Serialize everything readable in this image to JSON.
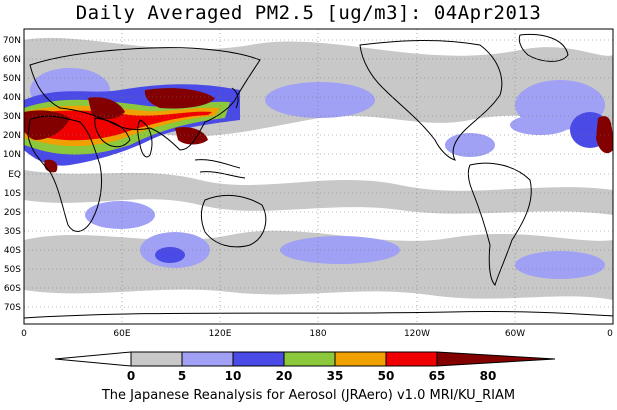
{
  "title": "Daily Averaged PM2.5 [ug/m3]: 04Apr2013",
  "footer": "The Japanese Reanalysis for Aerosol (JRAero) v1.0 MRI/KU_RIAM",
  "map": {
    "lat_labels": [
      "70N",
      "60N",
      "50N",
      "40N",
      "30N",
      "20N",
      "10N",
      "EQ",
      "10S",
      "20S",
      "30S",
      "40S",
      "50S",
      "60S",
      "70S"
    ],
    "lon_labels": [
      "0",
      "60E",
      "120E",
      "180",
      "120W",
      "60W",
      "0"
    ]
  },
  "colorbar": {
    "levels": [
      "0",
      "5",
      "10",
      "20",
      "35",
      "50",
      "65",
      "80"
    ],
    "colors": [
      "#ffffff",
      "#c8c8c8",
      "#a0a0f5",
      "#4a4ae6",
      "#8cc83c",
      "#f0a000",
      "#f00000",
      "#820000"
    ]
  }
}
